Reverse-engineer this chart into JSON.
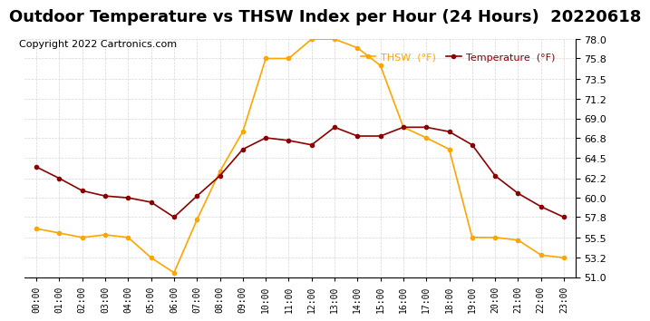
{
  "title": "Outdoor Temperature vs THSW Index per Hour (24 Hours)  20220618",
  "copyright": "Copyright 2022 Cartronics.com",
  "hours": [
    "00:00",
    "01:00",
    "02:00",
    "03:00",
    "04:00",
    "05:00",
    "06:00",
    "07:00",
    "08:00",
    "09:00",
    "10:00",
    "11:00",
    "12:00",
    "13:00",
    "14:00",
    "15:00",
    "16:00",
    "17:00",
    "18:00",
    "19:00",
    "20:00",
    "21:00",
    "22:00",
    "23:00"
  ],
  "thsw": [
    56.5,
    56.0,
    55.5,
    55.8,
    55.5,
    53.2,
    51.5,
    57.5,
    63.0,
    67.5,
    75.8,
    75.8,
    78.0,
    78.0,
    77.0,
    75.0,
    68.0,
    66.8,
    65.5,
    55.5,
    55.5,
    55.2,
    53.5,
    53.2
  ],
  "temperature": [
    63.5,
    62.2,
    60.8,
    60.2,
    60.0,
    59.5,
    57.8,
    60.2,
    62.5,
    65.5,
    66.8,
    66.5,
    66.0,
    68.0,
    67.0,
    67.0,
    68.0,
    68.0,
    67.5,
    66.0,
    62.5,
    60.5,
    59.0,
    57.8
  ],
  "thsw_color": "#FFA500",
  "temp_color": "#8B0000",
  "ylim_min": 51.0,
  "ylim_max": 78.0,
  "yticks": [
    51.0,
    53.2,
    55.5,
    57.8,
    60.0,
    62.2,
    64.5,
    66.8,
    69.0,
    71.2,
    73.5,
    75.8,
    78.0
  ],
  "background_color": "#ffffff",
  "plot_bg_color": "#ffffff",
  "grid_color": "#cccccc",
  "title_fontsize": 13,
  "copyright_fontsize": 8,
  "legend_thsw": "THSW  (°F)",
  "legend_temp": "Temperature  (°F)"
}
